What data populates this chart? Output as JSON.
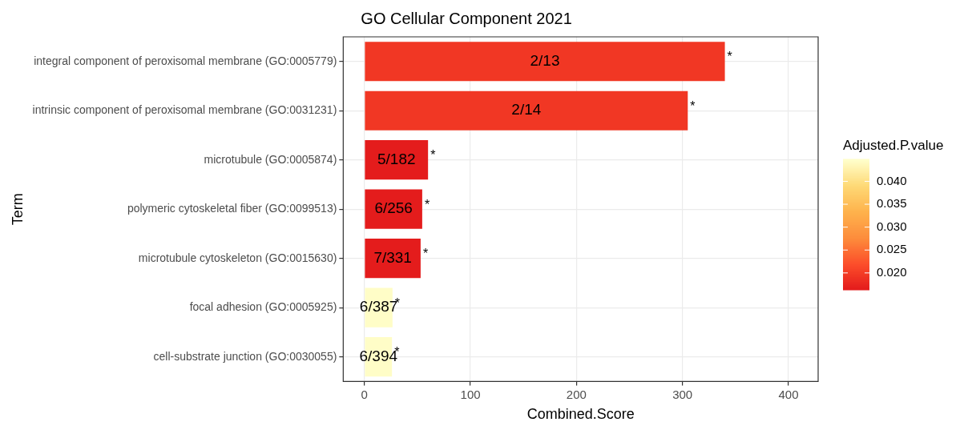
{
  "chart_data": {
    "type": "bar",
    "orientation": "horizontal",
    "title": "GO Cellular Component 2021",
    "xlabel": "Combined.Score",
    "ylabel": "Term",
    "clabel": "Adjusted.P.value",
    "categories": [
      "integral component of peroxisomal membrane (GO:0005779)",
      "intrinsic component of peroxisomal membrane (GO:0031231)",
      "microtubule (GO:0005874)",
      "polymeric cytoskeletal fiber (GO:0099513)",
      "microtubule cytoskeleton (GO:0015630)",
      "focal adhesion (GO:0005925)",
      "cell-substrate junction (GO:0030055)"
    ],
    "values": [
      340,
      305,
      60,
      54.5,
      53,
      26.5,
      26
    ],
    "cvalues": [
      0.0195,
      0.0195,
      0.0165,
      0.0165,
      0.0165,
      0.0445,
      0.0445
    ],
    "value_labels": [
      "2/13",
      "2/14",
      "5/182",
      "6/256",
      "7/331",
      "6/387",
      "6/394"
    ],
    "annotations": [
      {
        "text": "*",
        "x": 340,
        "y": "integral component of peroxisomal membrane (GO:0005779)"
      },
      {
        "text": "*",
        "x": 305,
        "y": "intrinsic component of peroxisomal membrane (GO:0031231)"
      },
      {
        "text": "*",
        "x": 60,
        "y": "microtubule (GO:0005874)"
      },
      {
        "text": "*",
        "x": 54.5,
        "y": "polymeric cytoskeletal fiber (GO:0099513)"
      },
      {
        "text": "*",
        "x": 53,
        "y": "microtubule cytoskeleton (GO:0015630)"
      },
      {
        "text": "*",
        "x": 26.5,
        "y": "focal adhesion (GO:0005925)"
      },
      {
        "text": "*",
        "x": 26,
        "y": "cell-substrate junction (GO:0030055)"
      }
    ],
    "xlim": [
      -20,
      428
    ],
    "xticks": [
      0,
      100,
      200,
      300,
      400
    ],
    "clim": [
      0.0163,
      0.0448
    ],
    "cticks": [
      {
        "value": 0.02,
        "label": "0.020"
      },
      {
        "value": 0.025,
        "label": "0.025"
      },
      {
        "value": 0.03,
        "label": "0.030"
      },
      {
        "value": 0.035,
        "label": "0.035"
      },
      {
        "value": 0.04,
        "label": "0.040"
      }
    ],
    "grid": true
  }
}
